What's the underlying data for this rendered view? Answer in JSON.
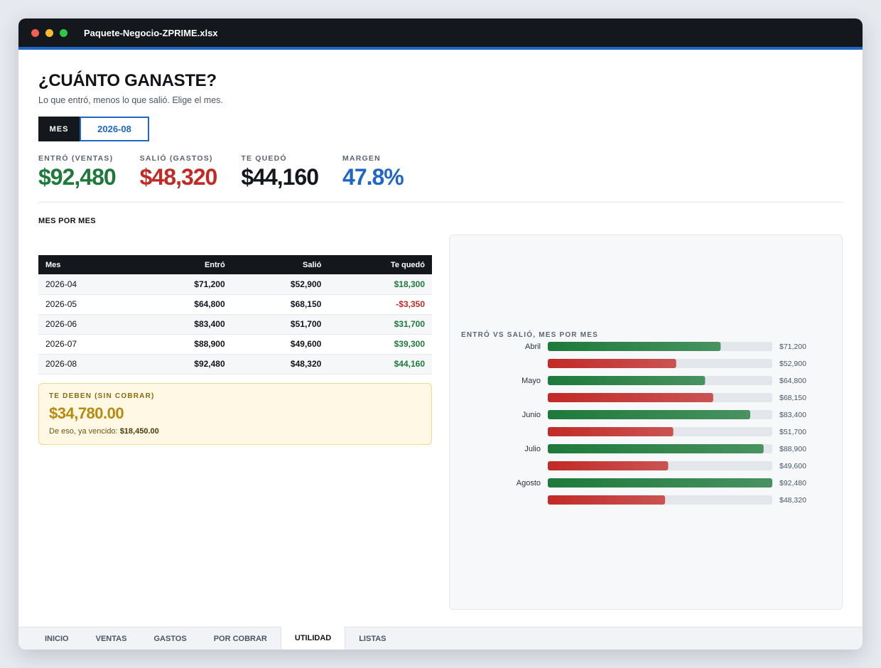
{
  "window": {
    "title": "Paquete-Negocio-ZPRIME.xlsx"
  },
  "header": {
    "title": "¿CUÁNTO GANASTE?",
    "subtitle": "Lo que entró, menos lo que salió. Elige el mes."
  },
  "month_picker": {
    "label": "MES",
    "value": "2026-08"
  },
  "kpis": [
    {
      "label": "ENTRÓ (VENTAS)",
      "value": "$92,480",
      "color": "#1d7a3a"
    },
    {
      "label": "SALIÓ (GASTOS)",
      "value": "$48,320",
      "color": "#c22a26"
    },
    {
      "label": "TE QUEDÓ",
      "value": "$44,160",
      "color": "#14171c"
    },
    {
      "label": "MARGEN",
      "value": "47.8%",
      "color": "#1f66c7"
    }
  ],
  "monthly": {
    "title": "MES POR MES",
    "columns": [
      "Mes",
      "Entró",
      "Salió",
      "Te quedó"
    ],
    "rows": [
      {
        "mes": "2026-04",
        "entro": "$71,200",
        "salio": "$52,900",
        "quedo": "$18,300"
      },
      {
        "mes": "2026-05",
        "entro": "$64,800",
        "salio": "$68,150",
        "quedo": "-$3,350"
      },
      {
        "mes": "2026-06",
        "entro": "$83,400",
        "salio": "$51,700",
        "quedo": "$31,700"
      },
      {
        "mes": "2026-07",
        "entro": "$88,900",
        "salio": "$49,600",
        "quedo": "$39,300"
      },
      {
        "mes": "2026-08",
        "entro": "$92,480",
        "salio": "$48,320",
        "quedo": "$44,160"
      }
    ]
  },
  "owed": {
    "label": "TE DEBEN (SIN COBRAR)",
    "amount": "$34,780.00",
    "note": "De eso, ya vencido:",
    "overdue": "$18,450.00"
  },
  "chart_data": {
    "type": "bar",
    "orientation": "horizontal",
    "title": "ENTRÓ VS SALIÓ, MES POR MES",
    "categories": [
      "Abril",
      "Mayo",
      "Junio",
      "Julio",
      "Agosto"
    ],
    "series": [
      {
        "values": [
          71200,
          64800,
          83400,
          88900,
          92480
        ],
        "labels": [
          "$71,200",
          "$64,800",
          "$83,400",
          "$88,900",
          "$92,480"
        ],
        "color": "#1d7a3a"
      },
      {
        "values": [
          52900,
          68150,
          51700,
          49600,
          48320
        ],
        "labels": [
          "$52,900",
          "$68,150",
          "$51,700",
          "$49,600",
          "$48,320"
        ],
        "color": "#c22a26"
      }
    ],
    "xlim": [
      0,
      92480
    ]
  },
  "tabs": [
    {
      "label": "INICIO",
      "active": false
    },
    {
      "label": "VENTAS",
      "active": false
    },
    {
      "label": "GASTOS",
      "active": false
    },
    {
      "label": "POR COBRAR",
      "active": false
    },
    {
      "label": "UTILIDAD",
      "active": true
    },
    {
      "label": "LISTAS",
      "active": false
    }
  ]
}
